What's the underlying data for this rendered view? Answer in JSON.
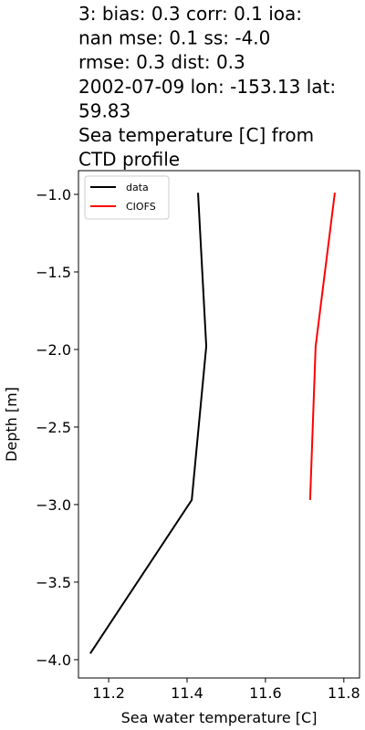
{
  "chart_data": {
    "type": "line",
    "title": [
      "3: bias: 0.3  corr: 0.1  ioa:",
      "nan  mse: 0.1  ss: -4.0",
      "rmse: 0.3  dist: 0.3",
      "2002-07-09 lon: -153.13 lat:",
      "59.83",
      "Sea temperature [C] from",
      "CTD profile"
    ],
    "xlabel": "Sea water temperature [C]",
    "ylabel": "Depth [m]",
    "xlim": [
      11.123,
      11.84
    ],
    "ylim": [
      -4.118,
      -0.847
    ],
    "xticks": [
      11.2,
      11.4,
      11.6,
      11.8
    ],
    "yticks": [
      {
        "value": -1.0,
        "label": "−1.0"
      },
      {
        "value": -1.5,
        "label": "−1.5"
      },
      {
        "value": -2.0,
        "label": "−2.0"
      },
      {
        "value": -2.5,
        "label": "−2.5"
      },
      {
        "value": -3.0,
        "label": "−3.0"
      },
      {
        "value": -3.5,
        "label": "−3.5"
      },
      {
        "value": -4.0,
        "label": "−4.0"
      }
    ],
    "legend": "upper left",
    "series": [
      {
        "name": "data",
        "color": "#000000",
        "x": [
          11.428,
          11.449,
          11.412,
          11.153
        ],
        "values": [
          -0.99,
          -1.98,
          -2.97,
          -3.96
        ]
      },
      {
        "name": "CIOFS",
        "color": "#ff0000",
        "x": [
          11.777,
          11.728,
          11.714
        ],
        "values": [
          -0.99,
          -1.98,
          -2.97
        ]
      }
    ]
  }
}
